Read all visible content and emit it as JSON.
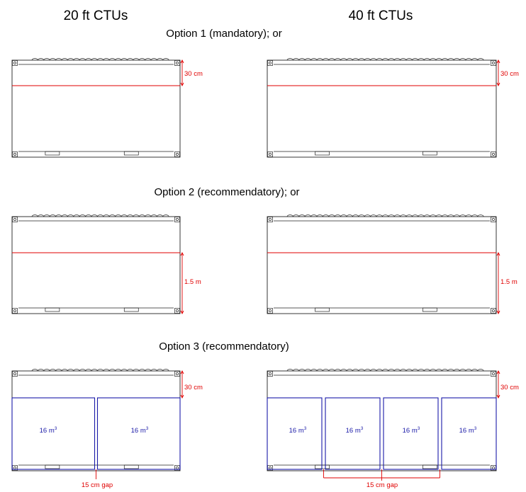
{
  "headers": {
    "left": "20 ft CTUs",
    "right": "40 ft CTUs"
  },
  "options": [
    {
      "label": "Option 1 (mandatory); or",
      "dimension": "30 cm"
    },
    {
      "label": "Option 2 (recommendatory); or",
      "dimension": "1.5 m"
    },
    {
      "label": "Option 3 (recommendatory)",
      "dimension": "30 cm",
      "volume_label": "16 m",
      "volume_superscript": "3",
      "gap_label": "15 cm gap",
      "boxes_20ft": 2,
      "boxes_40ft": 4
    }
  ],
  "colors": {
    "outline": "#222222",
    "dimension": "#e00000",
    "volume": "#1a1aa8"
  }
}
